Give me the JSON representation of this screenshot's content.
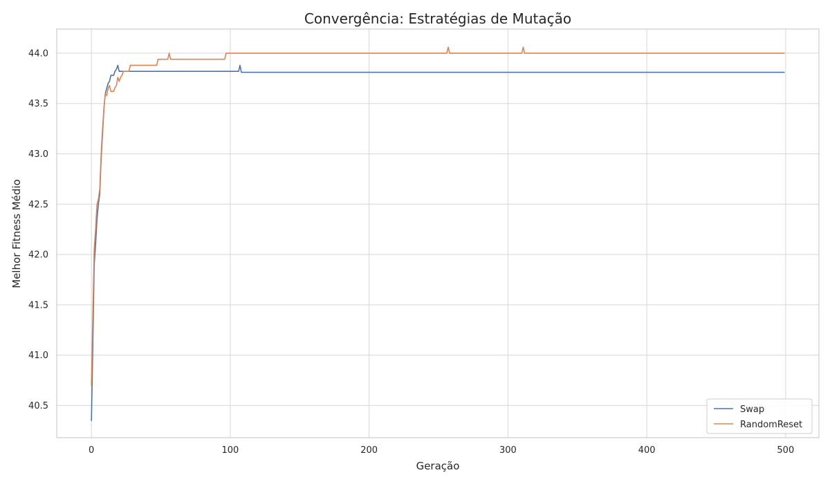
{
  "chart_data": {
    "type": "line",
    "title": "Convergência: Estratégias de Mutação",
    "xlabel": "Geração",
    "ylabel": "Melhor Fitness Médio",
    "xlim": [
      -25,
      524
    ],
    "ylim": [
      40.18,
      44.24
    ],
    "xticks": [
      0,
      100,
      200,
      300,
      400,
      500
    ],
    "yticks": [
      40.5,
      41.0,
      41.5,
      42.0,
      42.5,
      43.0,
      43.5,
      44.0
    ],
    "xtick_labels": [
      "0",
      "100",
      "200",
      "300",
      "400",
      "500"
    ],
    "ytick_labels": [
      "40.5",
      "41.0",
      "41.5",
      "42.0",
      "42.5",
      "43.0",
      "43.5",
      "44.0"
    ],
    "grid": true,
    "legend_position": "lower-right",
    "series": [
      {
        "name": "Swap",
        "color": "#4c72b0",
        "points": [
          [
            0,
            40.35
          ],
          [
            1,
            41.1
          ],
          [
            2,
            41.9
          ],
          [
            3,
            42.1
          ],
          [
            4,
            42.35
          ],
          [
            5,
            42.5
          ],
          [
            6,
            42.6
          ],
          [
            7,
            42.95
          ],
          [
            8,
            43.2
          ],
          [
            9,
            43.45
          ],
          [
            10,
            43.6
          ],
          [
            11,
            43.65
          ],
          [
            12,
            43.7
          ],
          [
            13,
            43.72
          ],
          [
            14,
            43.78
          ],
          [
            15,
            43.78
          ],
          [
            16,
            43.78
          ],
          [
            17,
            43.82
          ],
          [
            18,
            43.84
          ],
          [
            19,
            43.88
          ],
          [
            20,
            43.82
          ],
          [
            106,
            43.82
          ],
          [
            107,
            43.88
          ],
          [
            108,
            43.81
          ],
          [
            499,
            43.81
          ]
        ]
      },
      {
        "name": "RandomReset",
        "color": "#dd8452",
        "points": [
          [
            0,
            40.7
          ],
          [
            1,
            41.4
          ],
          [
            2,
            42.05
          ],
          [
            3,
            42.25
          ],
          [
            4,
            42.5
          ],
          [
            5,
            42.55
          ],
          [
            6,
            42.65
          ],
          [
            7,
            43.0
          ],
          [
            8,
            43.25
          ],
          [
            9,
            43.45
          ],
          [
            10,
            43.6
          ],
          [
            11,
            43.58
          ],
          [
            12,
            43.65
          ],
          [
            13,
            43.68
          ],
          [
            14,
            43.62
          ],
          [
            15,
            43.62
          ],
          [
            16,
            43.62
          ],
          [
            17,
            43.66
          ],
          [
            18,
            43.68
          ],
          [
            19,
            43.76
          ],
          [
            20,
            43.72
          ],
          [
            21,
            43.76
          ],
          [
            22,
            43.78
          ],
          [
            23,
            43.82
          ],
          [
            24,
            43.82
          ],
          [
            27,
            43.82
          ],
          [
            28,
            43.88
          ],
          [
            47,
            43.88
          ],
          [
            48,
            43.94
          ],
          [
            55,
            43.94
          ],
          [
            56,
            44.0
          ],
          [
            57,
            43.94
          ],
          [
            96,
            43.94
          ],
          [
            97,
            44.0
          ],
          [
            256,
            44.0
          ],
          [
            257,
            44.06
          ],
          [
            258,
            44.0
          ],
          [
            310,
            44.0
          ],
          [
            311,
            44.06
          ],
          [
            312,
            44.0
          ],
          [
            499,
            44.0
          ]
        ]
      }
    ]
  }
}
